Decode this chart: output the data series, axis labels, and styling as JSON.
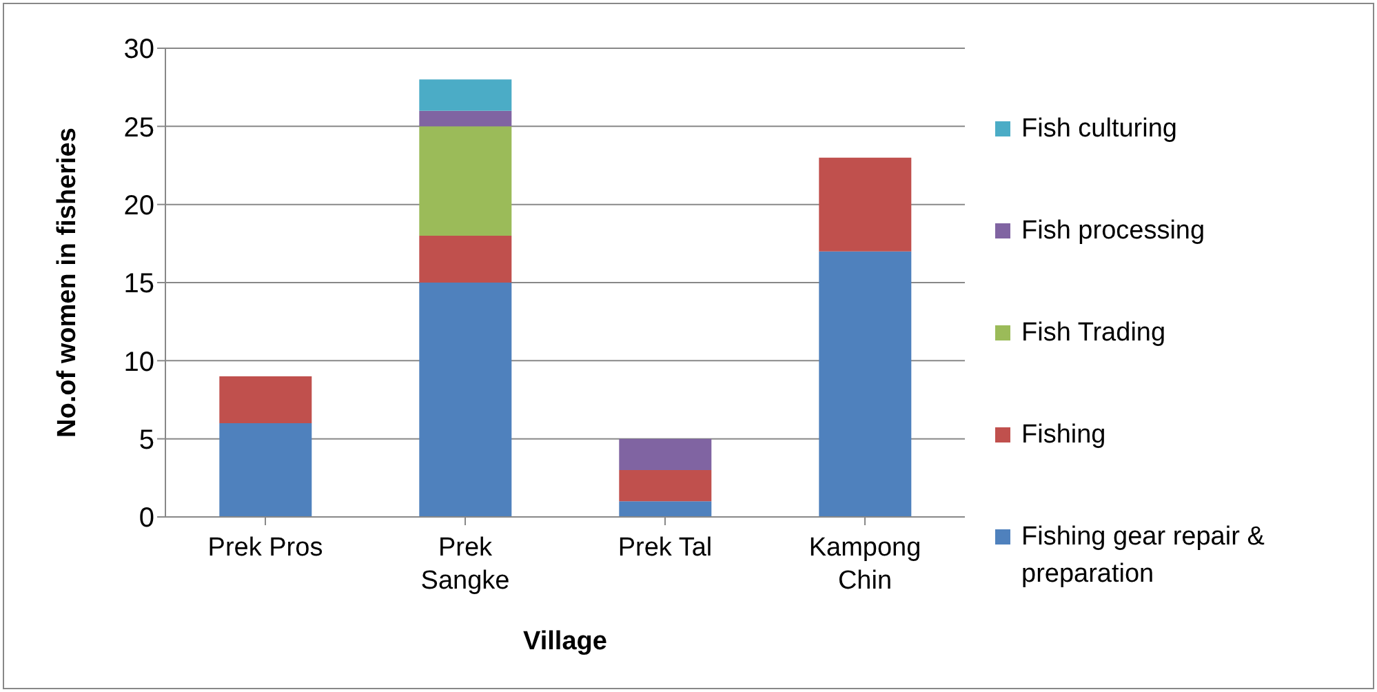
{
  "chart_data": {
    "type": "bar",
    "stacked": true,
    "xlabel": "Village",
    "ylabel": "No.of women in fisheries",
    "categories": [
      "Prek Pros",
      "Prek Sangke",
      "Prek Tal",
      "Kampong Chin"
    ],
    "series": [
      {
        "name": "Fishing gear repair & preparation",
        "color": "#4f81bd",
        "values": [
          6,
          15,
          1,
          17
        ]
      },
      {
        "name": "Fishing",
        "color": "#c0504d",
        "values": [
          3,
          3,
          2,
          6
        ]
      },
      {
        "name": "Fish Trading",
        "color": "#9bbb59",
        "values": [
          null,
          7,
          null,
          null
        ]
      },
      {
        "name": "Fish processing",
        "color": "#8064a2",
        "values": [
          null,
          1,
          2,
          null
        ]
      },
      {
        "name": "Fish culturing",
        "color": "#4bacc6",
        "values": [
          null,
          2,
          null,
          null
        ]
      }
    ],
    "ylim": [
      0,
      30
    ],
    "yticks": [
      0,
      5,
      10,
      15,
      20,
      25,
      30
    ],
    "grid": "y",
    "legend": "right"
  }
}
